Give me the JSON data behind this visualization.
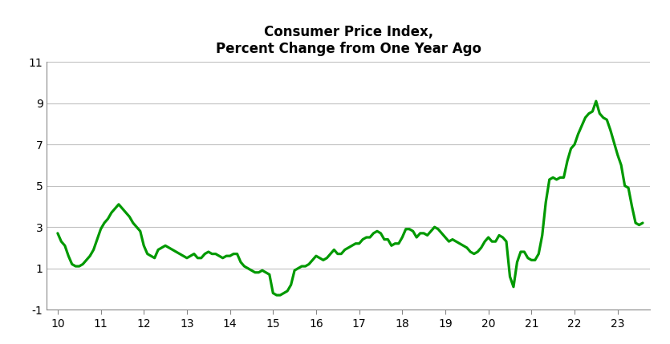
{
  "title": "Consumer Price Index,\nPercent Change from One Year Ago",
  "title_fontsize": 12,
  "title_fontweight": "bold",
  "line_color": "#009900",
  "line_width": 2.3,
  "background_color": "#ffffff",
  "xlim": [
    9.75,
    23.75
  ],
  "ylim": [
    -1,
    11
  ],
  "yticks": [
    -1,
    1,
    3,
    5,
    7,
    9,
    11
  ],
  "xticks": [
    10,
    11,
    12,
    13,
    14,
    15,
    16,
    17,
    18,
    19,
    20,
    21,
    22,
    23
  ],
  "grid_color": "#c0c0c0",
  "x": [
    10.0,
    10.083,
    10.167,
    10.25,
    10.333,
    10.417,
    10.5,
    10.583,
    10.667,
    10.75,
    10.833,
    10.917,
    11.0,
    11.083,
    11.167,
    11.25,
    11.333,
    11.417,
    11.5,
    11.583,
    11.667,
    11.75,
    11.833,
    11.917,
    12.0,
    12.083,
    12.167,
    12.25,
    12.333,
    12.417,
    12.5,
    12.583,
    12.667,
    12.75,
    12.833,
    12.917,
    13.0,
    13.083,
    13.167,
    13.25,
    13.333,
    13.417,
    13.5,
    13.583,
    13.667,
    13.75,
    13.833,
    13.917,
    14.0,
    14.083,
    14.167,
    14.25,
    14.333,
    14.417,
    14.5,
    14.583,
    14.667,
    14.75,
    14.833,
    14.917,
    15.0,
    15.083,
    15.167,
    15.25,
    15.333,
    15.417,
    15.5,
    15.583,
    15.667,
    15.75,
    15.833,
    15.917,
    16.0,
    16.083,
    16.167,
    16.25,
    16.333,
    16.417,
    16.5,
    16.583,
    16.667,
    16.75,
    16.833,
    16.917,
    17.0,
    17.083,
    17.167,
    17.25,
    17.333,
    17.417,
    17.5,
    17.583,
    17.667,
    17.75,
    17.833,
    17.917,
    18.0,
    18.083,
    18.167,
    18.25,
    18.333,
    18.417,
    18.5,
    18.583,
    18.667,
    18.75,
    18.833,
    18.917,
    19.0,
    19.083,
    19.167,
    19.25,
    19.333,
    19.417,
    19.5,
    19.583,
    19.667,
    19.75,
    19.833,
    19.917,
    20.0,
    20.083,
    20.167,
    20.25,
    20.333,
    20.417,
    20.5,
    20.583,
    20.667,
    20.75,
    20.833,
    20.917,
    21.0,
    21.083,
    21.167,
    21.25,
    21.333,
    21.417,
    21.5,
    21.583,
    21.667,
    21.75,
    21.833,
    21.917,
    22.0,
    22.083,
    22.167,
    22.25,
    22.333,
    22.417,
    22.5,
    22.583,
    22.667,
    22.75,
    22.833,
    22.917,
    23.0,
    23.083,
    23.167,
    23.25,
    23.333,
    23.417,
    23.5,
    23.583
  ],
  "y": [
    2.7,
    2.3,
    2.1,
    1.6,
    1.2,
    1.1,
    1.1,
    1.2,
    1.4,
    1.6,
    1.9,
    2.4,
    2.9,
    3.2,
    3.4,
    3.7,
    3.9,
    4.1,
    3.9,
    3.7,
    3.5,
    3.2,
    3.0,
    2.8,
    2.1,
    1.7,
    1.6,
    1.5,
    1.9,
    2.0,
    2.1,
    2.0,
    1.9,
    1.8,
    1.7,
    1.6,
    1.5,
    1.6,
    1.7,
    1.5,
    1.5,
    1.7,
    1.8,
    1.7,
    1.7,
    1.6,
    1.5,
    1.6,
    1.6,
    1.7,
    1.7,
    1.3,
    1.1,
    1.0,
    0.9,
    0.8,
    0.8,
    0.9,
    0.8,
    0.7,
    -0.2,
    -0.3,
    -0.3,
    -0.2,
    -0.1,
    0.2,
    0.9,
    1.0,
    1.1,
    1.1,
    1.2,
    1.4,
    1.6,
    1.5,
    1.4,
    1.5,
    1.7,
    1.9,
    1.7,
    1.7,
    1.9,
    2.0,
    2.1,
    2.2,
    2.2,
    2.4,
    2.5,
    2.5,
    2.7,
    2.8,
    2.7,
    2.4,
    2.4,
    2.1,
    2.2,
    2.2,
    2.5,
    2.9,
    2.9,
    2.8,
    2.5,
    2.7,
    2.7,
    2.6,
    2.8,
    3.0,
    2.9,
    2.7,
    2.5,
    2.3,
    2.4,
    2.3,
    2.2,
    2.1,
    2.0,
    1.8,
    1.7,
    1.8,
    2.0,
    2.3,
    2.5,
    2.3,
    2.3,
    2.6,
    2.5,
    2.3,
    0.6,
    0.1,
    1.3,
    1.8,
    1.8,
    1.5,
    1.4,
    1.4,
    1.7,
    2.6,
    4.2,
    5.3,
    5.4,
    5.3,
    5.4,
    5.4,
    6.2,
    6.8,
    7.0,
    7.5,
    7.9,
    8.3,
    8.5,
    8.6,
    9.1,
    8.5,
    8.3,
    8.2,
    7.7,
    7.1,
    6.5,
    6.0,
    5.0,
    4.9,
    4.0,
    3.2,
    3.1,
    3.2
  ]
}
